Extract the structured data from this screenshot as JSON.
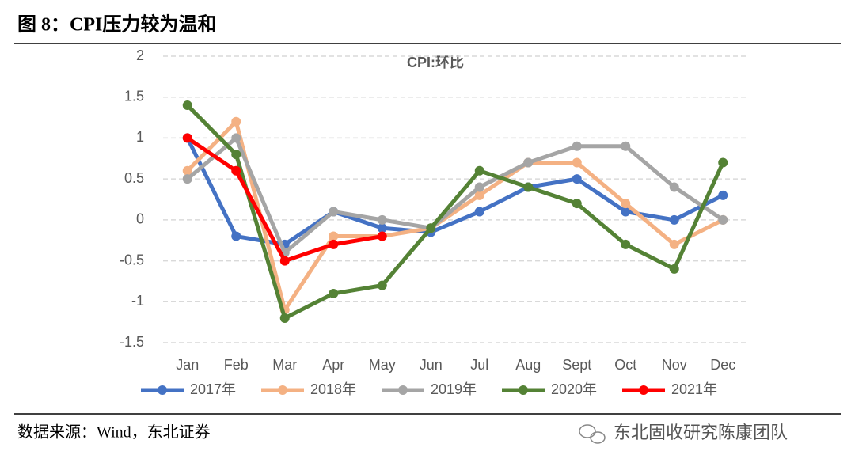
{
  "header": {
    "title": "图 8：CPI压力较为温和"
  },
  "chart_data": {
    "type": "line",
    "title": "CPI:环比",
    "categories": [
      "Jan",
      "Feb",
      "Mar",
      "Apr",
      "May",
      "Jun",
      "Jul",
      "Aug",
      "Sept",
      "Oct",
      "Nov",
      "Dec"
    ],
    "series": [
      {
        "name": "2017年",
        "color": "#4472c4",
        "values": [
          1.0,
          -0.2,
          -0.3,
          0.1,
          -0.1,
          -0.15,
          0.1,
          0.4,
          0.5,
          0.1,
          0.0,
          0.3
        ]
      },
      {
        "name": "2018年",
        "color": "#f4b183",
        "values": [
          0.6,
          1.2,
          -1.1,
          -0.2,
          -0.2,
          -0.1,
          0.3,
          0.7,
          0.7,
          0.2,
          -0.3,
          0.0
        ]
      },
      {
        "name": "2019年",
        "color": "#a5a5a5",
        "values": [
          0.5,
          1.0,
          -0.4,
          0.1,
          0.0,
          -0.1,
          0.4,
          0.7,
          0.9,
          0.9,
          0.4,
          0.0
        ]
      },
      {
        "name": "2020年",
        "color": "#548235",
        "values": [
          1.4,
          0.8,
          -1.2,
          -0.9,
          -0.8,
          -0.1,
          0.6,
          0.4,
          0.2,
          -0.3,
          -0.6,
          0.7
        ]
      },
      {
        "name": "2021年",
        "color": "#ff0000",
        "values": [
          1.0,
          0.6,
          -0.5,
          -0.3,
          -0.2,
          null,
          null,
          null,
          null,
          null,
          null,
          null
        ]
      }
    ],
    "ylim": [
      -1.5,
      2
    ],
    "yticks": [
      2,
      1.5,
      1,
      0.5,
      0,
      -0.5,
      -1,
      -1.5
    ],
    "grid": true,
    "legend": "bottom"
  },
  "footer": {
    "source": "数据来源：Wind，东北证券",
    "watermark": "东北固收研究陈康团队"
  }
}
